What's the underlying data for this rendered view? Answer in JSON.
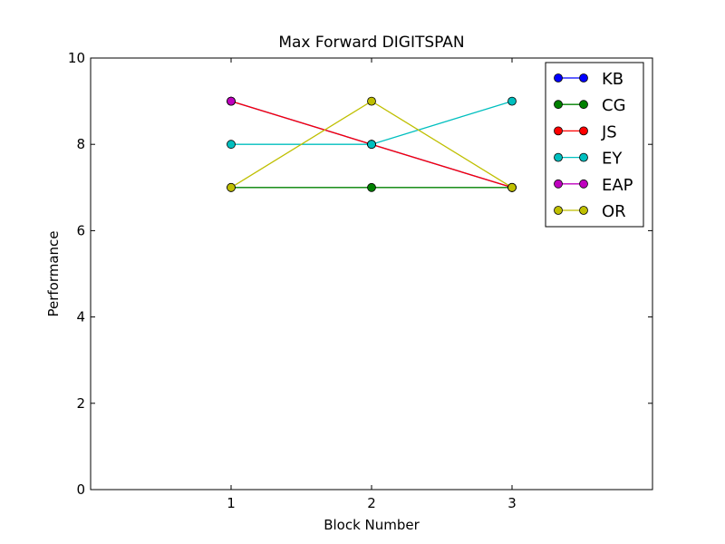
{
  "chart_data": {
    "type": "line",
    "title": "Max Forward DIGITSPAN",
    "xlabel": "Block Number",
    "ylabel": "Performance",
    "xlim": [
      0,
      4
    ],
    "ylim": [
      0,
      10
    ],
    "x_ticks": [
      1,
      2,
      3
    ],
    "y_ticks": [
      0,
      2,
      4,
      6,
      8,
      10
    ],
    "grid": false,
    "legend_position": "top-right",
    "series": [
      {
        "name": "KB",
        "color": "#0000ff",
        "x": [
          1,
          2,
          3
        ],
        "values": [
          9,
          8,
          7
        ]
      },
      {
        "name": "CG",
        "color": "#008000",
        "x": [
          1,
          2,
          3
        ],
        "values": [
          7,
          7,
          7
        ]
      },
      {
        "name": "JS",
        "color": "#ff0000",
        "x": [
          1,
          2,
          3
        ],
        "values": [
          9,
          8,
          7
        ]
      },
      {
        "name": "EY",
        "color": "#00bfbf",
        "x": [
          1,
          2,
          3
        ],
        "values": [
          8,
          8,
          9
        ]
      },
      {
        "name": "EAP",
        "color": "#bf00bf",
        "x": [
          1
        ],
        "values": [
          9
        ]
      },
      {
        "name": "OR",
        "color": "#bfbf00",
        "x": [
          1,
          2,
          3
        ],
        "values": [
          7,
          9,
          7
        ]
      }
    ]
  }
}
